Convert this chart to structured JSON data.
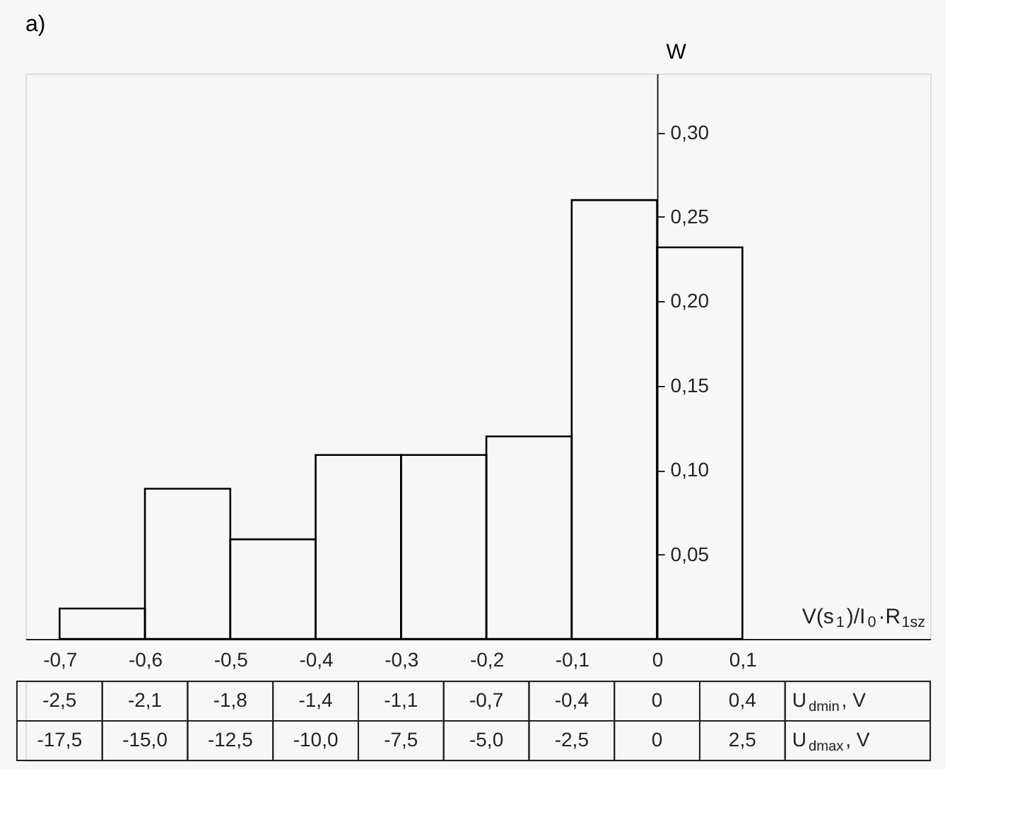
{
  "chart_data": {
    "type": "histogram",
    "title": "a)",
    "ylabel": "W",
    "xlabel": "V(s$_{1}$)/I$_{0}$·R$_{1sz}$",
    "bins": [
      -0.7,
      -0.6,
      -0.5,
      -0.4,
      -0.3,
      -0.2,
      -0.1,
      0,
      0.1
    ],
    "values": [
      0.018,
      0.089,
      0.059,
      0.109,
      0.109,
      0.12,
      0.26,
      0.232
    ],
    "color": "#000000",
    "xlim": [
      -0.74,
      0.32
    ],
    "ylim": [
      0,
      0.335
    ],
    "xticks": [
      {
        "value": -0.7,
        "label": "-0,7"
      },
      {
        "value": -0.6,
        "label": "-0,6"
      },
      {
        "value": -0.5,
        "label": "-0,5"
      },
      {
        "value": -0.4,
        "label": "-0,4"
      },
      {
        "value": -0.3,
        "label": "-0,3"
      },
      {
        "value": -0.2,
        "label": "-0,2"
      },
      {
        "value": -0.1,
        "label": "-0,1"
      },
      0,
      {
        "value": 0.1,
        "label": "0,1"
      }
    ],
    "yticks": [
      {
        "value": 0.05,
        "label": "0,05"
      },
      {
        "value": 0.1,
        "label": "0,10"
      },
      {
        "value": 0.15,
        "label": "0,15"
      },
      {
        "value": 0.2,
        "label": "0,20"
      },
      {
        "value": 0.25,
        "label": "0,25"
      },
      {
        "value": 0.3,
        "label": "0,30"
      }
    ],
    "grid": false,
    "annotations": [
      "-2,5",
      "-2,1",
      "-1,8",
      "-1,4",
      "-1,1",
      "-0,7",
      "-0,4",
      "0",
      "0,4",
      "U$_{dmin}$, V",
      "-17,5",
      "-15,0",
      "-12,5",
      "-10,0",
      "-7,5",
      "-5,0",
      "-2,5",
      "0",
      "2,5",
      "U$_{dmax}$, V"
    ]
  }
}
